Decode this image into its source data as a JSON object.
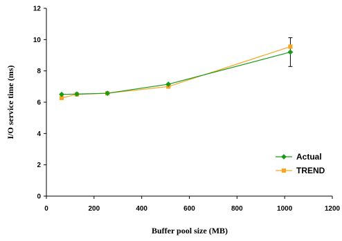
{
  "chart_data": {
    "type": "line",
    "xlabel": "Buffer pool size (MB)",
    "ylabel": "I/O service time (ms)",
    "xlim": [
      0,
      1200
    ],
    "ylim": [
      0,
      12
    ],
    "xticks": [
      "0",
      "200",
      "400",
      "600",
      "800",
      "1000",
      "1200"
    ],
    "yticks": [
      "0",
      "2",
      "4",
      "6",
      "8",
      "10",
      "12"
    ],
    "grid": false,
    "legend_position": "lower-right",
    "series": [
      {
        "name": "Actual",
        "color": "#1a9a1a",
        "marker": "diamond",
        "x": [
          64,
          128,
          256,
          512,
          1024
        ],
        "y": [
          6.5,
          6.52,
          6.57,
          7.15,
          9.2
        ],
        "error": [
          0,
          0,
          0,
          0,
          0.92
        ]
      },
      {
        "name": "TREND",
        "color": "#f5a623",
        "marker": "square",
        "x": [
          64,
          128,
          256,
          512,
          1024
        ],
        "y": [
          6.27,
          6.5,
          6.57,
          7.0,
          9.55
        ],
        "error": [
          0,
          0,
          0,
          0,
          0
        ]
      }
    ]
  }
}
